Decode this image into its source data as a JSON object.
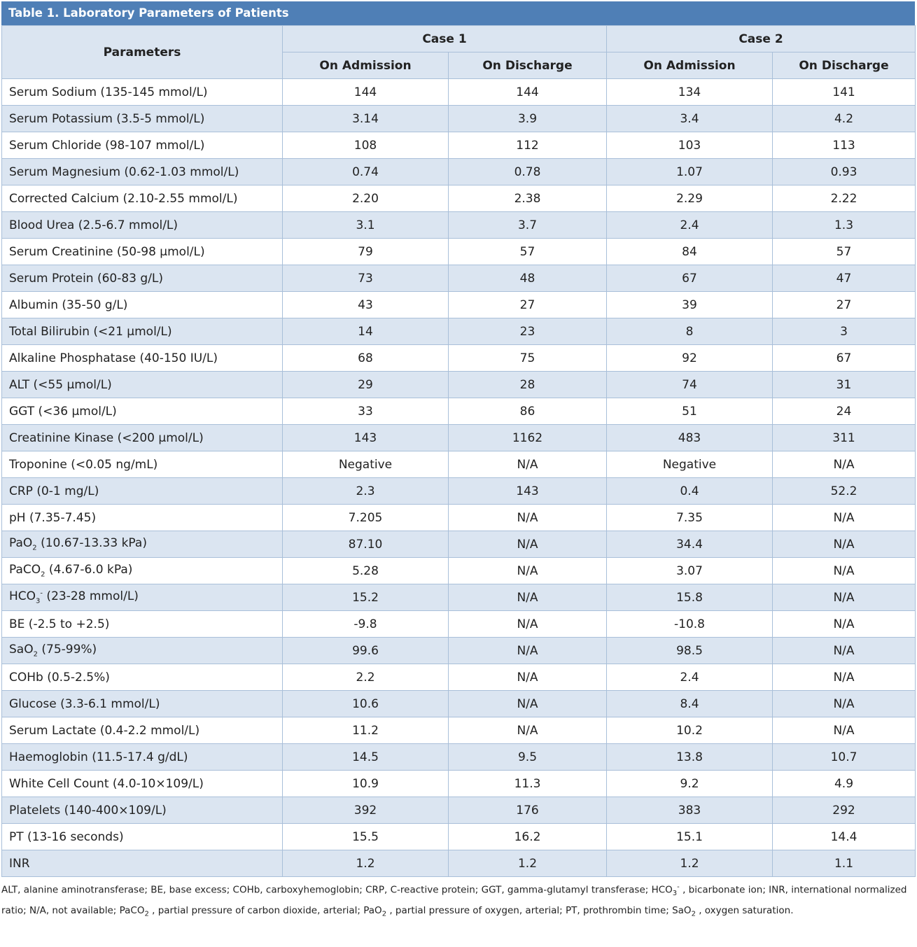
{
  "title": "Table 1. Laboratory Parameters of Patients",
  "header": {
    "parameters": "Parameters",
    "case1": "Case 1",
    "case2": "Case 2",
    "sub": [
      "On Admission",
      "On Discharge",
      "On Admission",
      "On Discharge"
    ]
  },
  "rows": [
    {
      "param_html": "Serum Sodium (135-145 mmol/L)",
      "values": [
        "144",
        "144",
        "134",
        "141"
      ]
    },
    {
      "param_html": "Serum Potassium (3.5-5 mmol/L)",
      "values": [
        "3.14",
        "3.9",
        "3.4",
        "4.2"
      ]
    },
    {
      "param_html": "Serum Chloride (98-107 mmol/L)",
      "values": [
        "108",
        "112",
        "103",
        "113"
      ]
    },
    {
      "param_html": "Serum Magnesium (0.62-1.03 mmol/L)",
      "values": [
        "0.74",
        "0.78",
        "1.07",
        "0.93"
      ]
    },
    {
      "param_html": "Corrected Calcium (2.10-2.55 mmol/L)",
      "values": [
        "2.20",
        "2.38",
        "2.29",
        "2.22"
      ]
    },
    {
      "param_html": "Blood Urea (2.5-6.7 mmol/L)",
      "values": [
        "3.1",
        "3.7",
        "2.4",
        "1.3"
      ]
    },
    {
      "param_html": "Serum Creatinine (50-98 µmol/L)",
      "values": [
        "79",
        "57",
        "84",
        "57"
      ]
    },
    {
      "param_html": "Serum Protein (60-83 g/L)",
      "values": [
        "73",
        "48",
        "67",
        "47"
      ]
    },
    {
      "param_html": "Albumin (35-50 g/L)",
      "values": [
        "43",
        "27",
        "39",
        "27"
      ]
    },
    {
      "param_html": "Total Bilirubin (<21 µmol/L)",
      "values": [
        "14",
        "23",
        "8",
        "3"
      ]
    },
    {
      "param_html": "Alkaline Phosphatase (40-150 IU/L)",
      "values": [
        "68",
        "75",
        "92",
        "67"
      ]
    },
    {
      "param_html": "ALT (<55 µmol/L)",
      "values": [
        "29",
        "28",
        "74",
        "31"
      ]
    },
    {
      "param_html": "GGT (<36 µmol/L)",
      "values": [
        "33",
        "86",
        "51",
        "24"
      ]
    },
    {
      "param_html": "Creatinine Kinase (<200 µmol/L)",
      "values": [
        "143",
        "1162",
        "483",
        "311"
      ]
    },
    {
      "param_html": "Troponine (<0.05 ng/mL)",
      "values": [
        "Negative",
        "N/A",
        "Negative",
        "N/A"
      ]
    },
    {
      "param_html": "CRP (0-1 mg/L)",
      "values": [
        "2.3",
        "143",
        "0.4",
        "52.2"
      ]
    },
    {
      "param_html": "pH (7.35-7.45)",
      "values": [
        "7.205",
        "N/A",
        "7.35",
        "N/A"
      ]
    },
    {
      "param_html": "PaO<sub>2</sub> (10.67-13.33 kPa)",
      "values": [
        "87.10",
        "N/A",
        "34.4",
        "N/A"
      ]
    },
    {
      "param_html": "PaCO<sub>2</sub> (4.67-6.0 kPa)",
      "values": [
        "5.28",
        "N/A",
        "3.07",
        "N/A"
      ]
    },
    {
      "param_html": "HCO<sub>3</sub><sup>-</sup> (23-28 mmol/L)",
      "values": [
        "15.2",
        "N/A",
        "15.8",
        "N/A"
      ]
    },
    {
      "param_html": "BE (-2.5 to +2.5)",
      "values": [
        "-9.8",
        "N/A",
        "-10.8",
        "N/A"
      ]
    },
    {
      "param_html": "SaO<sub>2</sub>  (75-99%)",
      "values": [
        "99.6",
        "N/A",
        "98.5",
        "N/A"
      ]
    },
    {
      "param_html": "COHb (0.5-2.5%)",
      "values": [
        "2.2",
        "N/A",
        "2.4",
        "N/A"
      ]
    },
    {
      "param_html": "Glucose (3.3-6.1 mmol/L)",
      "values": [
        "10.6",
        "N/A",
        "8.4",
        "N/A"
      ]
    },
    {
      "param_html": "Serum Lactate (0.4-2.2 mmol/L)",
      "values": [
        "11.2",
        "N/A",
        "10.2",
        "N/A"
      ]
    },
    {
      "param_html": "Haemoglobin (11.5-17.4 g/dL)",
      "values": [
        "14.5",
        "9.5",
        "13.8",
        "10.7"
      ]
    },
    {
      "param_html": "White Cell Count (4.0-10×109/L)",
      "values": [
        "10.9",
        "11.3",
        "9.2",
        "4.9"
      ]
    },
    {
      "param_html": "Platelets (140-400×109/L)",
      "values": [
        "392",
        "176",
        "383",
        "292"
      ]
    },
    {
      "param_html": "PT (13-16 seconds)",
      "values": [
        "15.5",
        "16.2",
        "15.1",
        "14.4"
      ]
    },
    {
      "param_html": "INR",
      "values": [
        "1.2",
        "1.2",
        "1.2",
        "1.1"
      ]
    }
  ],
  "footnote_html": "ALT, alanine aminotransferase; BE, base excess; COHb, carboxyhemoglobin; CRP, C-reactive protein; GGT, gamma-glutamyl transferase; HCO<sub>3</sub><sup>-</sup> , bicarbonate ion; INR, international normalized ratio; N/A, not available; PaCO<sub>2</sub> , partial pressure of carbon dioxide, arterial; PaO<sub>2</sub> , partial pressure of oxygen, arterial; PT, prothrombin time; SaO<sub>2</sub> , oxygen saturation.",
  "colors": {
    "header_blue": "#4f7fb6",
    "row_tint": "#dbe5f1",
    "border": "#a9bfd9"
  }
}
